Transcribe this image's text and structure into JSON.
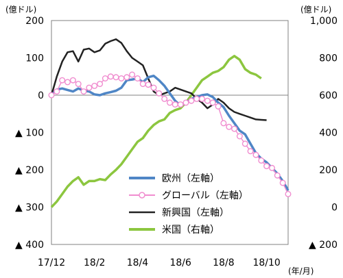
{
  "chart_data": {
    "type": "line",
    "x_unit": "(年/月)",
    "x_tick_labels": [
      "17/12",
      "18/2",
      "18/4",
      "18/6",
      "18/8",
      "18/10"
    ],
    "x_tick_index": [
      0,
      8,
      16,
      24,
      32,
      40
    ],
    "left_axis": {
      "unit": "(億ドル)",
      "ylim": [
        -400,
        200
      ],
      "ticks": [
        200,
        100,
        0,
        -100,
        -200,
        -300,
        -400
      ],
      "tick_labels": [
        "200",
        "100",
        "0",
        "▲ 100",
        "▲ 200",
        "▲ 300",
        "▲ 400"
      ]
    },
    "right_axis": {
      "unit": "(億ドル)",
      "ylim": [
        -200,
        1000
      ],
      "ticks": [
        1000,
        800,
        600,
        400,
        200,
        0,
        -200
      ],
      "tick_labels": [
        "1,000",
        "800",
        "600",
        "400",
        "200",
        "0",
        "▲ 200"
      ]
    },
    "legend": {
      "placement": "lower-middle"
    },
    "series": [
      {
        "name": "欧州（左軸）",
        "axis": "left",
        "color": "#4f86c6",
        "marker": "none",
        "values": [
          0,
          15,
          18,
          14,
          10,
          18,
          12,
          10,
          2,
          0,
          5,
          8,
          12,
          20,
          40,
          42,
          45,
          35,
          48,
          52,
          40,
          25,
          5,
          -15,
          -28,
          -20,
          -10,
          -5,
          0,
          2,
          -5,
          -20,
          -32,
          -55,
          -75,
          -95,
          -105,
          -130,
          -155,
          -170,
          -180,
          -195,
          -210,
          -230,
          -255
        ]
      },
      {
        "name": "グローバル（左軸）",
        "axis": "left",
        "color": "#f08ccf",
        "marker": "circle",
        "values": [
          0,
          10,
          40,
          35,
          40,
          30,
          10,
          20,
          25,
          30,
          45,
          50,
          48,
          45,
          48,
          55,
          45,
          30,
          28,
          20,
          5,
          -10,
          -20,
          -25,
          -25,
          -20,
          -15,
          -10,
          -10,
          -15,
          -20,
          -30,
          -75,
          -85,
          -90,
          -110,
          -130,
          -150,
          -160,
          -175,
          -190,
          -195,
          -215,
          -235,
          -265
        ]
      },
      {
        "name": "新興国（左軸）",
        "axis": "left",
        "color": "#222222",
        "marker": "none",
        "values": [
          0,
          50,
          90,
          115,
          118,
          90,
          122,
          125,
          115,
          120,
          138,
          145,
          150,
          140,
          118,
          100,
          90,
          80,
          45,
          10,
          0,
          5,
          10,
          20,
          15,
          10,
          5,
          -10,
          -20,
          -35,
          -25,
          -10,
          -20,
          -35,
          -45,
          -50,
          -55,
          -60,
          -65,
          -66,
          -67
        ]
      },
      {
        "name": "米国（右軸）",
        "axis": "right",
        "color": "#8cc63f",
        "marker": "none",
        "values": [
          0,
          30,
          70,
          110,
          140,
          160,
          120,
          140,
          140,
          150,
          145,
          175,
          200,
          230,
          270,
          310,
          350,
          370,
          410,
          440,
          460,
          470,
          505,
          520,
          530,
          560,
          600,
          640,
          680,
          700,
          720,
          730,
          750,
          790,
          810,
          790,
          740,
          720,
          710,
          690
        ]
      }
    ]
  }
}
